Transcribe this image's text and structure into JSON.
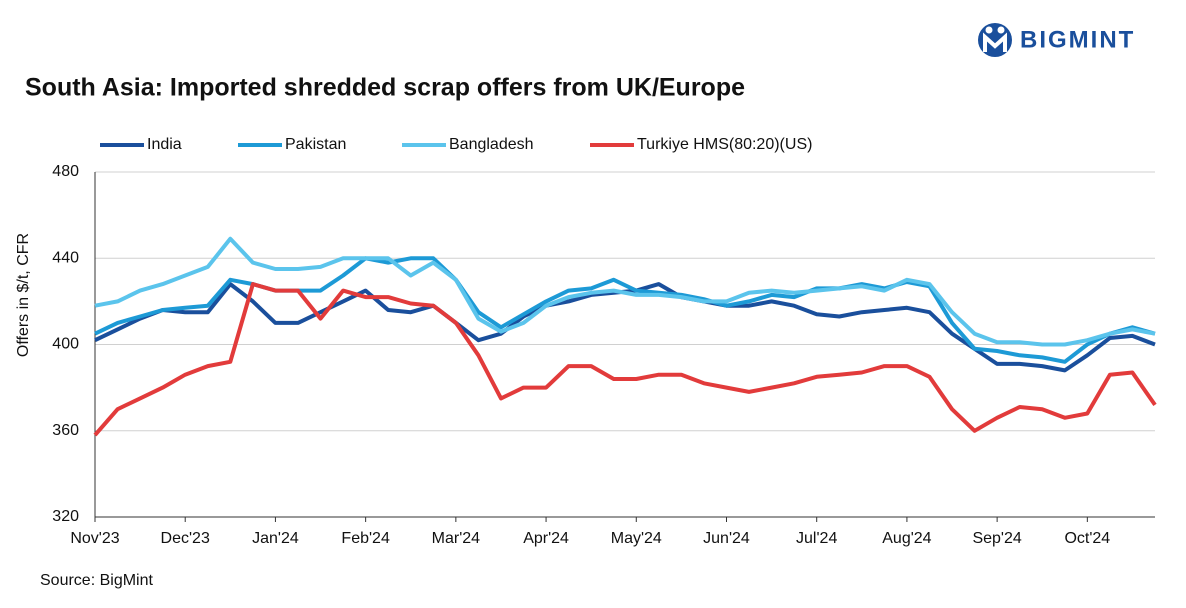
{
  "logo": "BIGMINT",
  "source": "Source: BigMint",
  "chart_data": {
    "type": "line",
    "title": "South Asia: Imported shredded scrap offers from UK/Europe",
    "y_label": "Offers in $/t, CFR",
    "categories": [
      "Nov'23",
      null,
      null,
      null,
      "Dec'23",
      null,
      null,
      null,
      "Jan'24",
      null,
      null,
      null,
      "Feb'24",
      null,
      null,
      null,
      "Mar'24",
      null,
      null,
      null,
      "Apr'24",
      null,
      null,
      null,
      "May'24",
      null,
      null,
      null,
      "Jun'24",
      null,
      null,
      null,
      "Jul'24",
      null,
      null,
      null,
      "Aug'24",
      null,
      null,
      null,
      "Sep'24",
      null,
      null,
      null,
      "Oct'24",
      null,
      null,
      null
    ],
    "series": [
      {
        "name": "India",
        "color": "#1a4f9c",
        "values": [
          402,
          407,
          412,
          416,
          415,
          415,
          428,
          420,
          410,
          410,
          415,
          420,
          425,
          416,
          415,
          418,
          410,
          402,
          405,
          413,
          418,
          420,
          423,
          424,
          425,
          428,
          422,
          420,
          418,
          418,
          420,
          418,
          414,
          413,
          415,
          416,
          417,
          415,
          405,
          398,
          391,
          391,
          390,
          388,
          395,
          403,
          404,
          400
        ]
      },
      {
        "name": "Pakistan",
        "color": "#1d9ad6",
        "values": [
          405,
          410,
          413,
          416,
          417,
          418,
          430,
          428,
          425,
          425,
          425,
          432,
          440,
          438,
          440,
          440,
          430,
          415,
          408,
          414,
          420,
          425,
          426,
          430,
          425,
          424,
          423,
          421,
          418,
          420,
          423,
          422,
          426,
          426,
          428,
          426,
          429,
          427,
          410,
          398,
          397,
          395,
          394,
          392,
          400,
          405,
          408,
          405
        ]
      },
      {
        "name": "Bangladesh",
        "color": "#5bc4ec",
        "values": [
          418,
          420,
          425,
          428,
          432,
          436,
          449,
          438,
          435,
          435,
          436,
          440,
          440,
          440,
          432,
          438,
          430,
          412,
          406,
          410,
          418,
          422,
          424,
          425,
          423,
          423,
          422,
          420,
          420,
          424,
          425,
          424,
          425,
          426,
          427,
          425,
          430,
          428,
          415,
          405,
          401,
          401,
          400,
          400,
          402,
          405,
          407,
          405
        ]
      },
      {
        "name": "Turkiye HMS(80:20)(US)",
        "color": "#e23b3b",
        "values": [
          358,
          370,
          375,
          380,
          386,
          390,
          392,
          428,
          425,
          425,
          412,
          425,
          422,
          422,
          419,
          418,
          410,
          395,
          375,
          380,
          380,
          390,
          390,
          384,
          384,
          386,
          386,
          382,
          380,
          378,
          380,
          382,
          385,
          386,
          387,
          390,
          390,
          385,
          370,
          360,
          366,
          371,
          370,
          366,
          368,
          386,
          387,
          372
        ]
      }
    ],
    "ylim": [
      320,
      480
    ],
    "yticks": [
      320,
      360,
      400,
      440,
      480
    ],
    "grid": true
  }
}
